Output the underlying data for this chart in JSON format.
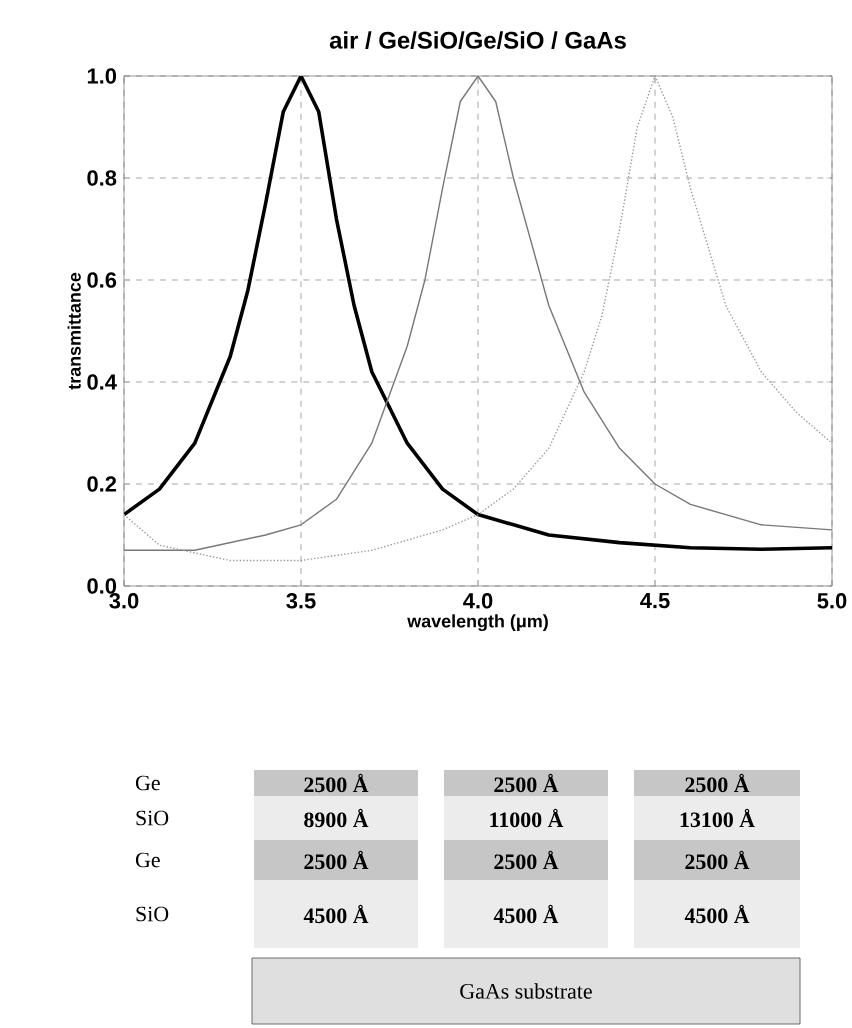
{
  "chart_data": [
    {
      "type": "line",
      "title": "air / Ge/SiO/Ge/SiO / GaAs",
      "xlabel": "wavelength (μm)",
      "ylabel": "transmittance",
      "xlim": [
        3,
        5
      ],
      "ylim": [
        0,
        1
      ],
      "xticks": [
        {
          "value": 3,
          "label": "3.0"
        },
        {
          "value": 3.5,
          "label": "3.5"
        },
        {
          "value": 4,
          "label": "4.0"
        },
        {
          "value": 4.5,
          "label": "4.5"
        },
        {
          "value": 5,
          "label": "5.0"
        }
      ],
      "yticks": [
        {
          "value": 0,
          "label": "0.0"
        },
        {
          "value": 0.2,
          "label": "0.2"
        },
        {
          "value": 0.4,
          "label": "0.4"
        },
        {
          "value": 0.6,
          "label": "0.6"
        },
        {
          "value": 0.8,
          "label": "0.8"
        },
        {
          "value": 1,
          "label": "1.0"
        }
      ],
      "grid": true,
      "marker": "none",
      "series": [
        {
          "color": "#000000",
          "line_style": "solid",
          "x": [
            3.0,
            3.1,
            3.2,
            3.3,
            3.35,
            3.4,
            3.45,
            3.5,
            3.55,
            3.6,
            3.65,
            3.7,
            3.8,
            3.9,
            4.0,
            4.2,
            4.4,
            4.6,
            4.8,
            5.0
          ],
          "values": [
            0.14,
            0.19,
            0.28,
            0.45,
            0.58,
            0.75,
            0.93,
            1.0,
            0.93,
            0.72,
            0.55,
            0.42,
            0.28,
            0.19,
            0.14,
            0.1,
            0.085,
            0.075,
            0.072,
            0.075
          ]
        },
        {
          "color": "#777777",
          "line_style": "solid",
          "x": [
            3.0,
            3.2,
            3.4,
            3.5,
            3.6,
            3.7,
            3.8,
            3.85,
            3.9,
            3.95,
            4.0,
            4.05,
            4.1,
            4.2,
            4.3,
            4.4,
            4.5,
            4.6,
            4.8,
            5.0
          ],
          "values": [
            0.07,
            0.07,
            0.1,
            0.12,
            0.17,
            0.28,
            0.47,
            0.6,
            0.78,
            0.95,
            1.0,
            0.95,
            0.8,
            0.55,
            0.38,
            0.27,
            0.2,
            0.16,
            0.12,
            0.11
          ]
        },
        {
          "color": "#999999",
          "line_style": "dotted",
          "x": [
            3.0,
            3.1,
            3.3,
            3.5,
            3.7,
            3.9,
            4.0,
            4.1,
            4.2,
            4.3,
            4.35,
            4.4,
            4.45,
            4.5,
            4.55,
            4.6,
            4.7,
            4.8,
            4.9,
            5.0
          ],
          "values": [
            0.14,
            0.08,
            0.05,
            0.05,
            0.07,
            0.11,
            0.14,
            0.19,
            0.27,
            0.42,
            0.53,
            0.7,
            0.9,
            1.0,
            0.92,
            0.78,
            0.55,
            0.42,
            0.34,
            0.28
          ]
        }
      ]
    },
    {
      "type": "other",
      "y_categories": [
        "Ge",
        "SiO",
        "Ge",
        "SiO"
      ],
      "cell_labels": [
        [
          "2500 Å",
          "2500 Å",
          "2500 Å"
        ],
        [
          "8900 Å",
          "11000 Å",
          "13100 Å"
        ],
        [
          "2500 Å",
          "2500 Å",
          "2500 Å"
        ],
        [
          "4500 Å",
          "4500 Å",
          "4500 Å"
        ]
      ],
      "annotations": [
        "GaAs substrate"
      ]
    }
  ]
}
